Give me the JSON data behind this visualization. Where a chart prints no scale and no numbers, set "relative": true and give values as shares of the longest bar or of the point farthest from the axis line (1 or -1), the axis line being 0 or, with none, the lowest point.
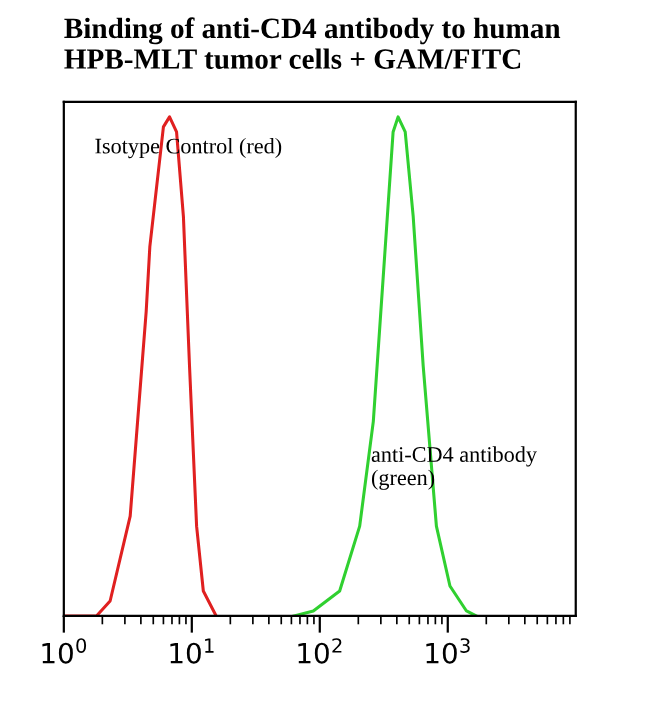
{
  "chart_data": {
    "type": "line",
    "title": "Binding of anti-CD4 antibody to human\nHPB-MLT tumor cells + GAM/FITC",
    "relative": true,
    "log": "x",
    "xlim": [
      1,
      10000
    ],
    "xticks": [
      {
        "value": 1,
        "label": "10$^{0}$"
      },
      {
        "value": 10,
        "label": "10$^{1}$"
      },
      {
        "value": 100,
        "label": "10$^{2}$"
      },
      {
        "value": 1000,
        "label": "10$^{3}$"
      }
    ],
    "series": [
      {
        "color": "#e02020",
        "x": [
          1.0,
          1.8,
          2.3,
          3.3,
          4.4,
          4.7,
          6.0,
          6.7,
          7.6,
          8.6,
          9.6,
          10.9,
          12.3,
          15.5
        ],
        "values": [
          0,
          0,
          0.03,
          0.2,
          0.61,
          0.74,
          0.98,
          1.0,
          0.97,
          0.8,
          0.5,
          0.18,
          0.05,
          0
        ]
      },
      {
        "color": "#30d030",
        "x": [
          63,
          89,
          143,
          205,
          262,
          331,
          374,
          409,
          465,
          537,
          643,
          815,
          1040,
          1400,
          1670
        ],
        "values": [
          0,
          0.01,
          0.05,
          0.18,
          0.39,
          0.77,
          0.97,
          1.0,
          0.97,
          0.8,
          0.5,
          0.18,
          0.06,
          0.01,
          0
        ]
      }
    ],
    "annotations": [
      "Isotype Control (red)",
      "anti-CD4 antibody\n(green)"
    ],
    "grid": false,
    "legend": false
  }
}
